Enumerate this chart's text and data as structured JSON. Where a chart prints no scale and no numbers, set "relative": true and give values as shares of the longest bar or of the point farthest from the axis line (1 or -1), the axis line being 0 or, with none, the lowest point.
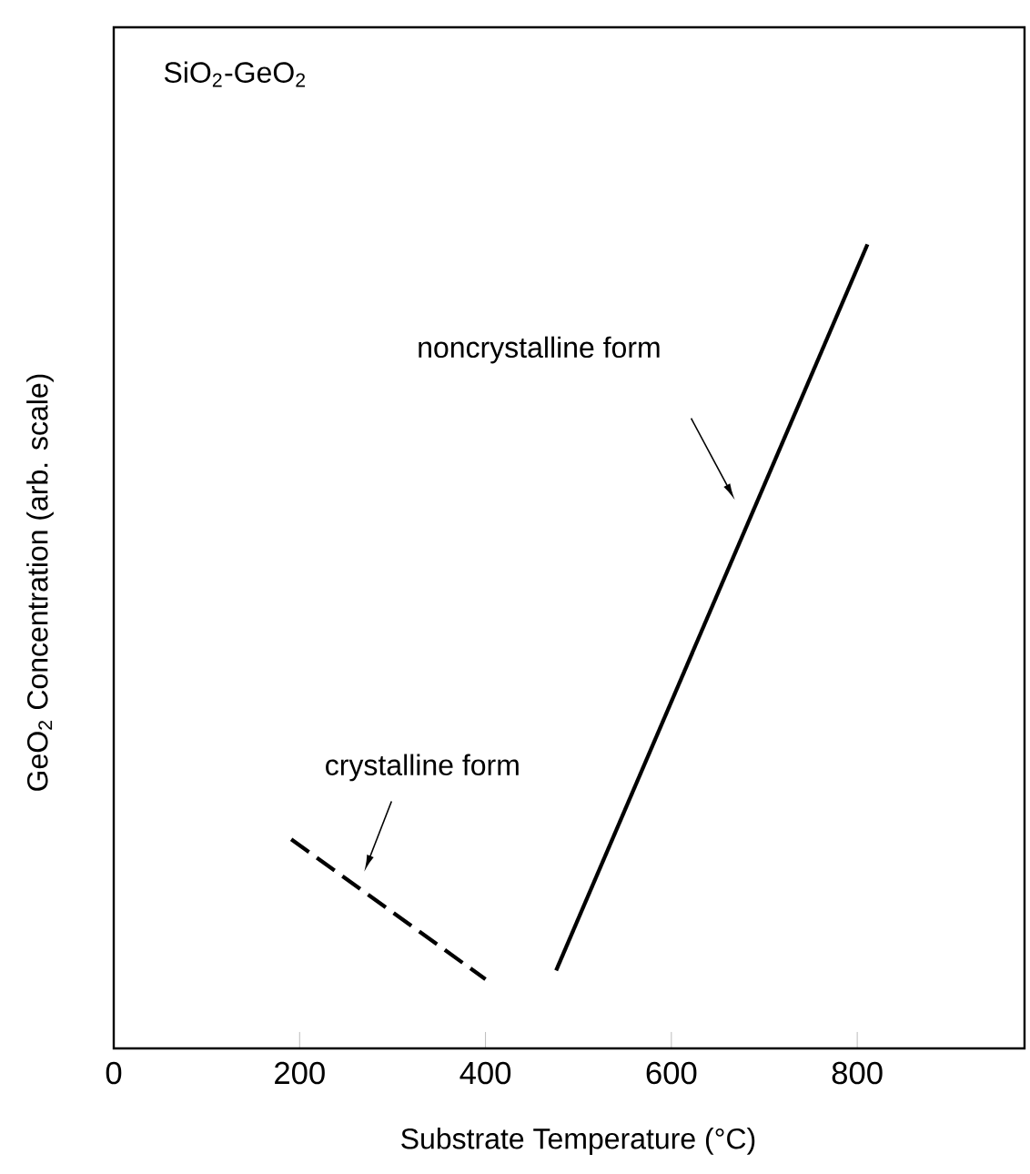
{
  "chart_data": {
    "type": "line",
    "title": "SiO$_{2}$-GeO$_{2}$",
    "xlabel": "Substrate Temperature (°C)",
    "ylabel": "GeO$_{2}$ Concentration (arb. scale)",
    "relative": true,
    "xlim": [
      0,
      980
    ],
    "xticks": [
      0,
      200,
      400,
      600,
      800
    ],
    "grid": false,
    "series": [
      {
        "color": "#000000",
        "line_style": "dashed",
        "x": [
          191,
          400
        ],
        "values": [
          0.26,
          0.086
        ]
      },
      {
        "color": "#000000",
        "line_style": "solid",
        "x": [
          476,
          811
        ],
        "values": [
          0.097,
          1
        ]
      }
    ],
    "annotations": [
      "noncrystalline form",
      "crystalline form"
    ]
  }
}
